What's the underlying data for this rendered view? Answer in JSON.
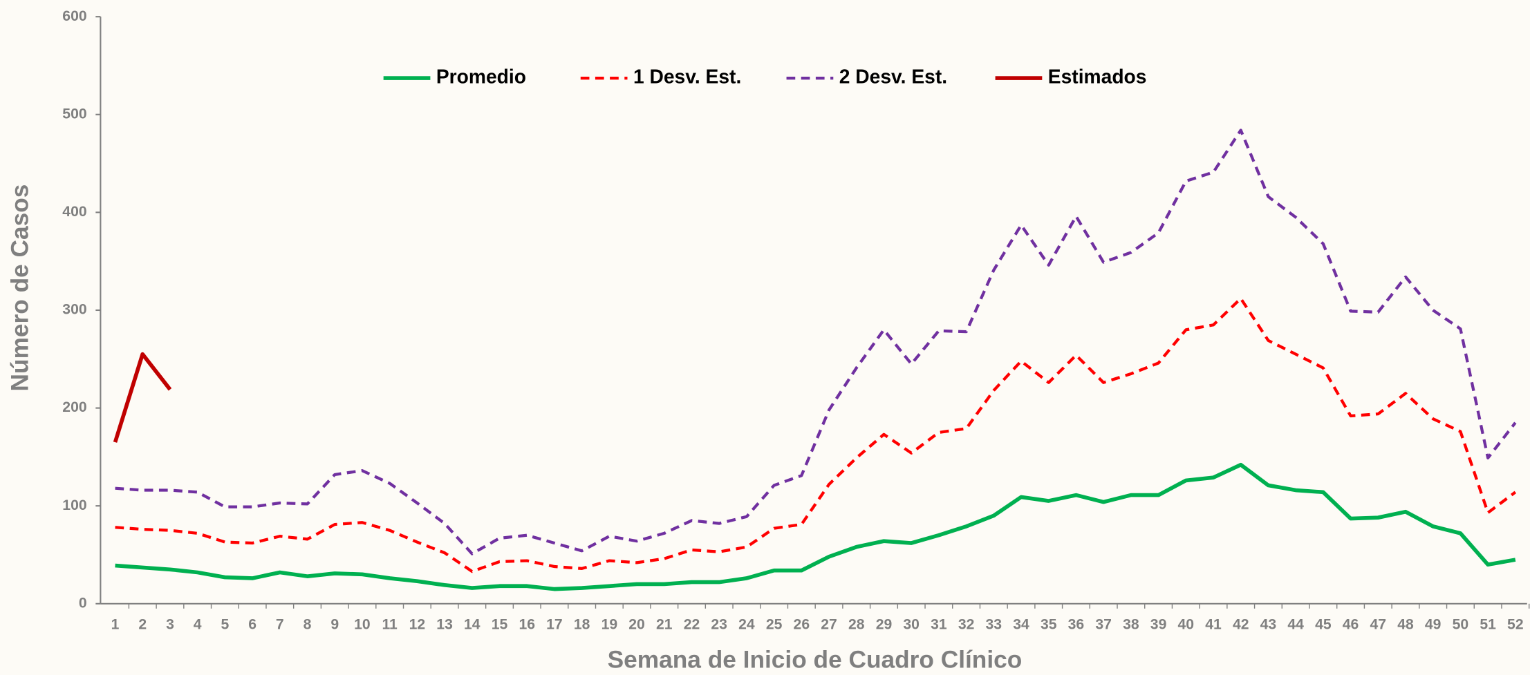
{
  "chart_data": {
    "type": "line",
    "x_label": "Semana de Inicio de Cuadro Clínico",
    "y_label": "Número de Casos",
    "categories": [
      "1",
      "2",
      "3",
      "4",
      "5",
      "6",
      "7",
      "8",
      "9",
      "10",
      "11",
      "12",
      "13",
      "14",
      "15",
      "16",
      "17",
      "18",
      "19",
      "20",
      "21",
      "22",
      "23",
      "24",
      "25",
      "26",
      "27",
      "28",
      "29",
      "30",
      "31",
      "32",
      "33",
      "34",
      "35",
      "36",
      "37",
      "38",
      "39",
      "40",
      "41",
      "42",
      "43",
      "44",
      "45",
      "46",
      "47",
      "48",
      "49",
      "50",
      "51",
      "52"
    ],
    "ylim": [
      0,
      600
    ],
    "yticks": [
      0,
      100,
      200,
      300,
      400,
      500,
      600
    ],
    "series": [
      {
        "name": "Promedio",
        "color": "#00b050",
        "line_style": "solid",
        "values": [
          39,
          37,
          35,
          32,
          27,
          26,
          32,
          28,
          31,
          30,
          26,
          23,
          19,
          16,
          18,
          18,
          15,
          16,
          18,
          20,
          20,
          22,
          22,
          26,
          34,
          34,
          48,
          58,
          64,
          62,
          70,
          79,
          90,
          109,
          105,
          111,
          104,
          111,
          111,
          126,
          129,
          142,
          121,
          116,
          114,
          87,
          88,
          94,
          79,
          72,
          40,
          45
        ]
      },
      {
        "name": "1 Desv. Est.",
        "color": "#ff0000",
        "line_style": "dashed",
        "values": [
          78,
          76,
          75,
          72,
          63,
          62,
          69,
          66,
          81,
          83,
          75,
          63,
          52,
          33,
          43,
          44,
          38,
          36,
          44,
          42,
          46,
          55,
          53,
          58,
          77,
          81,
          122,
          149,
          173,
          154,
          175,
          179,
          218,
          248,
          226,
          254,
          226,
          235,
          246,
          280,
          285,
          312,
          269,
          255,
          241,
          192,
          194,
          215,
          189,
          176,
          93,
          114
        ]
      },
      {
        "name": "2 Desv. Est.",
        "color": "#7030a0",
        "line_style": "dashed",
        "values": [
          118,
          116,
          116,
          114,
          99,
          99,
          103,
          102,
          132,
          136,
          123,
          103,
          82,
          51,
          67,
          70,
          62,
          54,
          69,
          64,
          72,
          85,
          82,
          89,
          121,
          131,
          198,
          241,
          280,
          245,
          279,
          278,
          341,
          387,
          346,
          396,
          349,
          359,
          379,
          432,
          441,
          484,
          416,
          395,
          368,
          299,
          298,
          334,
          300,
          281,
          149,
          185
        ]
      },
      {
        "name": "Estimados",
        "color": "#c00000",
        "line_style": "solid",
        "values": [
          165,
          255,
          219,
          null,
          null,
          null,
          null,
          null,
          null,
          null,
          null,
          null,
          null,
          null,
          null,
          null,
          null,
          null,
          null,
          null,
          null,
          null,
          null,
          null,
          null,
          null,
          null,
          null,
          null,
          null,
          null,
          null,
          null,
          null,
          null,
          null,
          null,
          null,
          null,
          null,
          null,
          null,
          null,
          null,
          null,
          null,
          null,
          null,
          null,
          null,
          null,
          null
        ]
      }
    ]
  }
}
